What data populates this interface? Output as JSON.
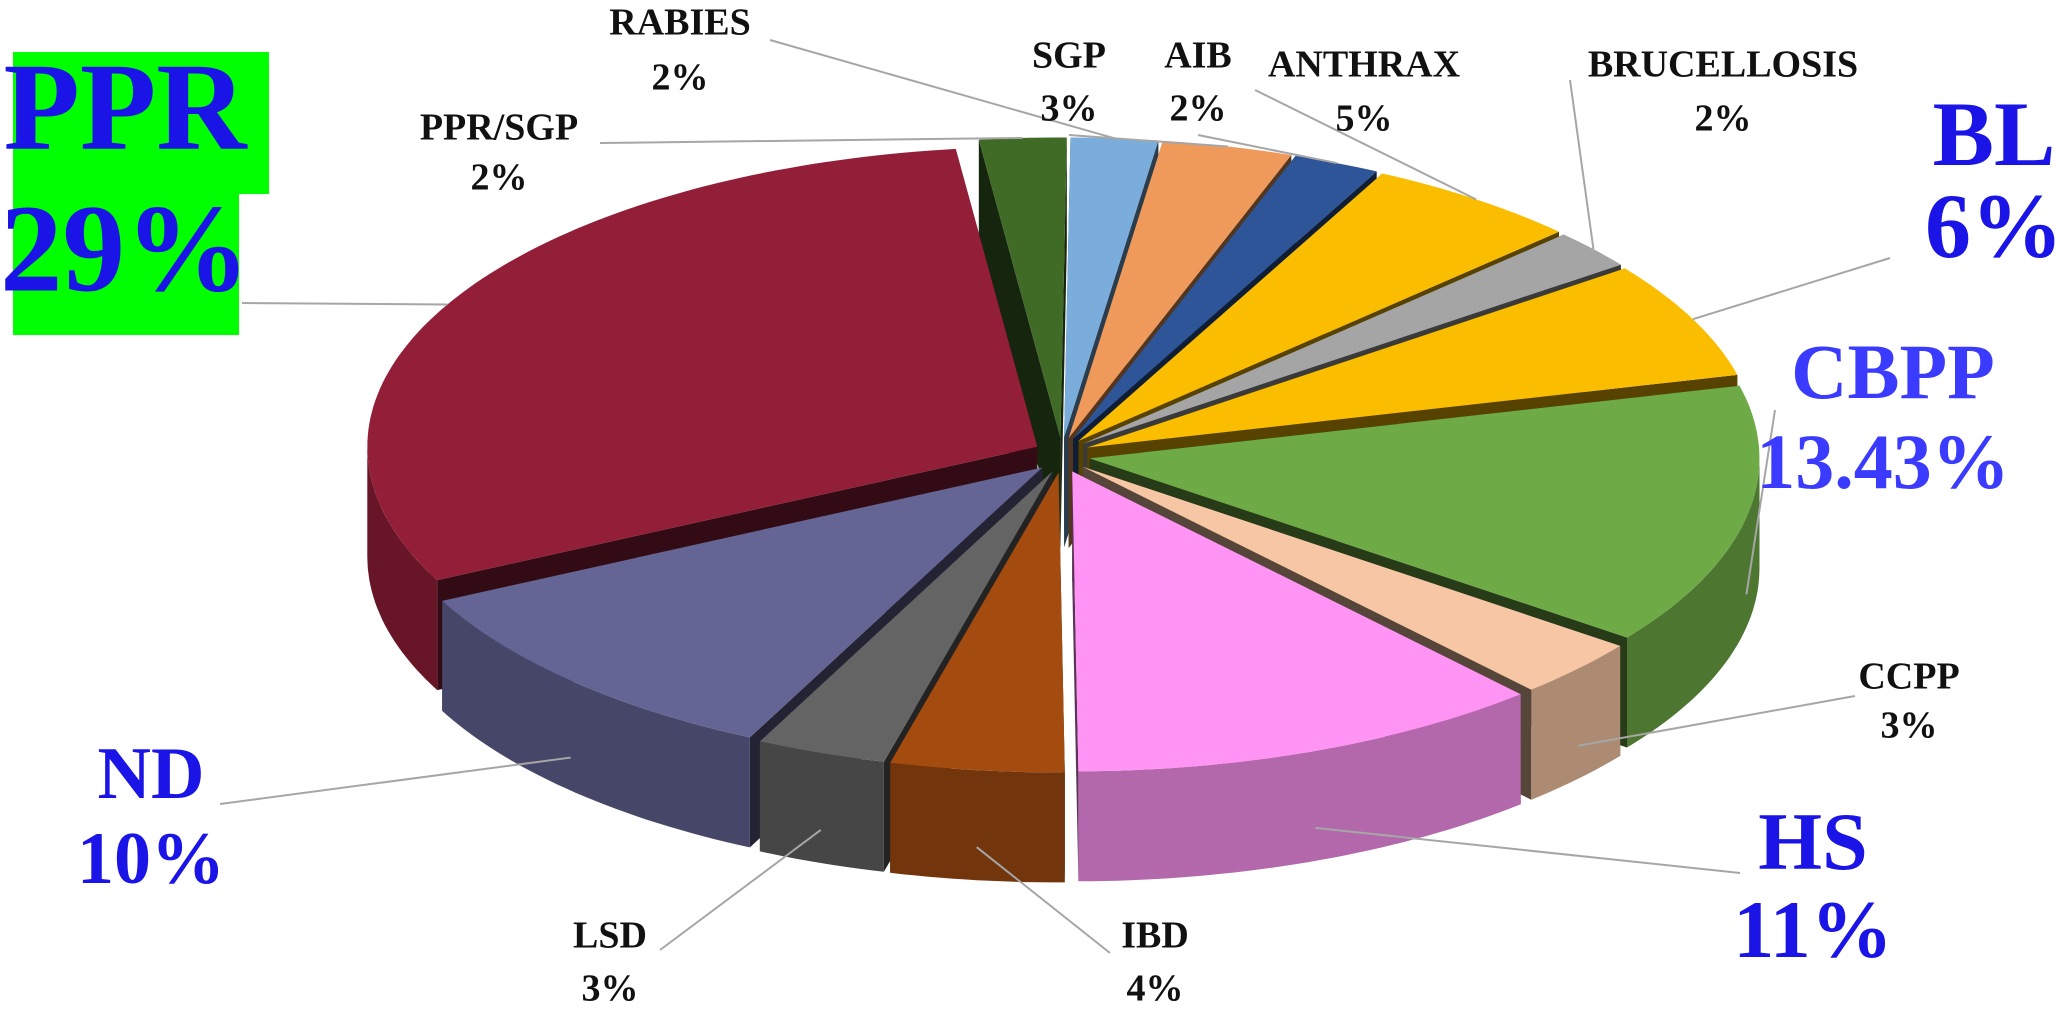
{
  "chart_data": {
    "type": "pie3d",
    "categories": [
      "PPR/SGP",
      "RABIES",
      "SGP",
      "AIB",
      "ANTHRAX",
      "BRUCELLOSIS",
      "BL",
      "CBPP",
      "CCPP",
      "HS",
      "IBD",
      "LSD",
      "ND",
      "PPR"
    ],
    "values": [
      2,
      2,
      3,
      2,
      5,
      2,
      6,
      13.43,
      3,
      11,
      4,
      3,
      10,
      29
    ],
    "value_labels": [
      "2%",
      "2%",
      "3%",
      "2%",
      "5%",
      "2%",
      "6%",
      "13.43%",
      "3%",
      "11%",
      "4%",
      "3%",
      "10%",
      "29%"
    ],
    "colors": [
      "#3f6b27",
      "#7aaddc",
      "#ef9a5a",
      "#2e5597",
      "#fbbd00",
      "#a5a5a5",
      "#fbbd00",
      "#6eaa45",
      "#f7c6a4",
      "#ff94f5",
      "#a44b10",
      "#646464",
      "#646594",
      "#931e38"
    ]
  }
}
